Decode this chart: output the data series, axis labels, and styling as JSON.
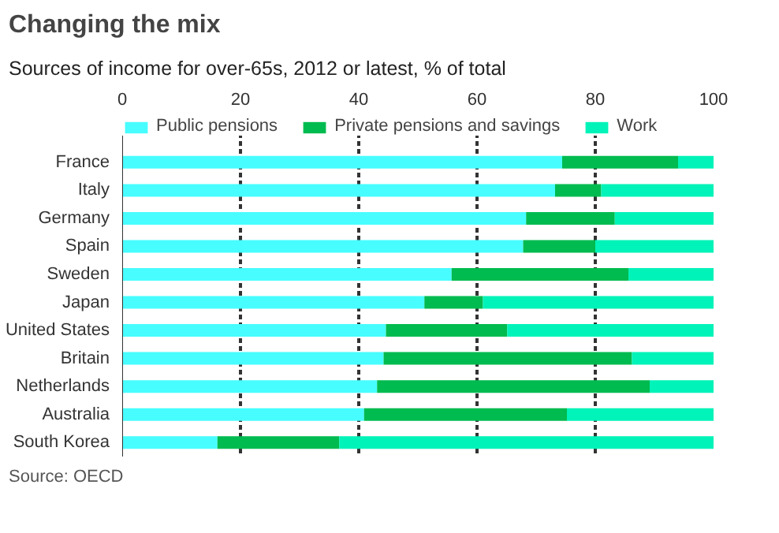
{
  "chart_data": {
    "type": "bar",
    "orientation": "horizontal",
    "stacked": true,
    "title": "Changing the mix",
    "subtitle": "Sources of income for over-65s, 2012 or latest, % of total",
    "categories": [
      "France",
      "Italy",
      "Germany",
      "Spain",
      "Sweden",
      "Japan",
      "United States",
      "Britain",
      "Netherlands",
      "Australia",
      "South Korea"
    ],
    "series": [
      {
        "name": "Public pensions",
        "color": "#47fdff",
        "values": [
          74.4,
          73.2,
          68.3,
          67.8,
          55.7,
          51.1,
          44.6,
          44.2,
          43.1,
          40.9,
          16.1
        ]
      },
      {
        "name": "Private pensions and savings",
        "color": "#00bb4f",
        "values": [
          19.6,
          7.8,
          15.0,
          12.2,
          29.9,
          9.9,
          20.5,
          42.0,
          46.1,
          34.3,
          20.6
        ]
      },
      {
        "name": "Work",
        "color": "#00f3b8",
        "values": [
          6.0,
          19.0,
          16.7,
          20.0,
          14.4,
          39.0,
          34.9,
          13.8,
          10.8,
          24.8,
          63.3
        ]
      }
    ],
    "xlim": [
      0,
      100
    ],
    "xticks": [
      0,
      20,
      40,
      60,
      80,
      100
    ],
    "grid": "x",
    "legend": "top",
    "annotations": [
      "Source: OECD"
    ]
  }
}
